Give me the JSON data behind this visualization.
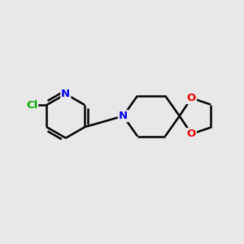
{
  "background_color": "#e8e8e8",
  "bond_color": "#000000",
  "bond_width": 1.8,
  "atom_colors": {
    "N": "#0000ee",
    "O": "#ee0000",
    "Cl": "#00aa00",
    "C": "#000000"
  },
  "figsize": [
    3.0,
    3.0
  ],
  "dpi": 100,
  "xlim": [
    0,
    10
  ],
  "ylim": [
    0,
    10
  ]
}
